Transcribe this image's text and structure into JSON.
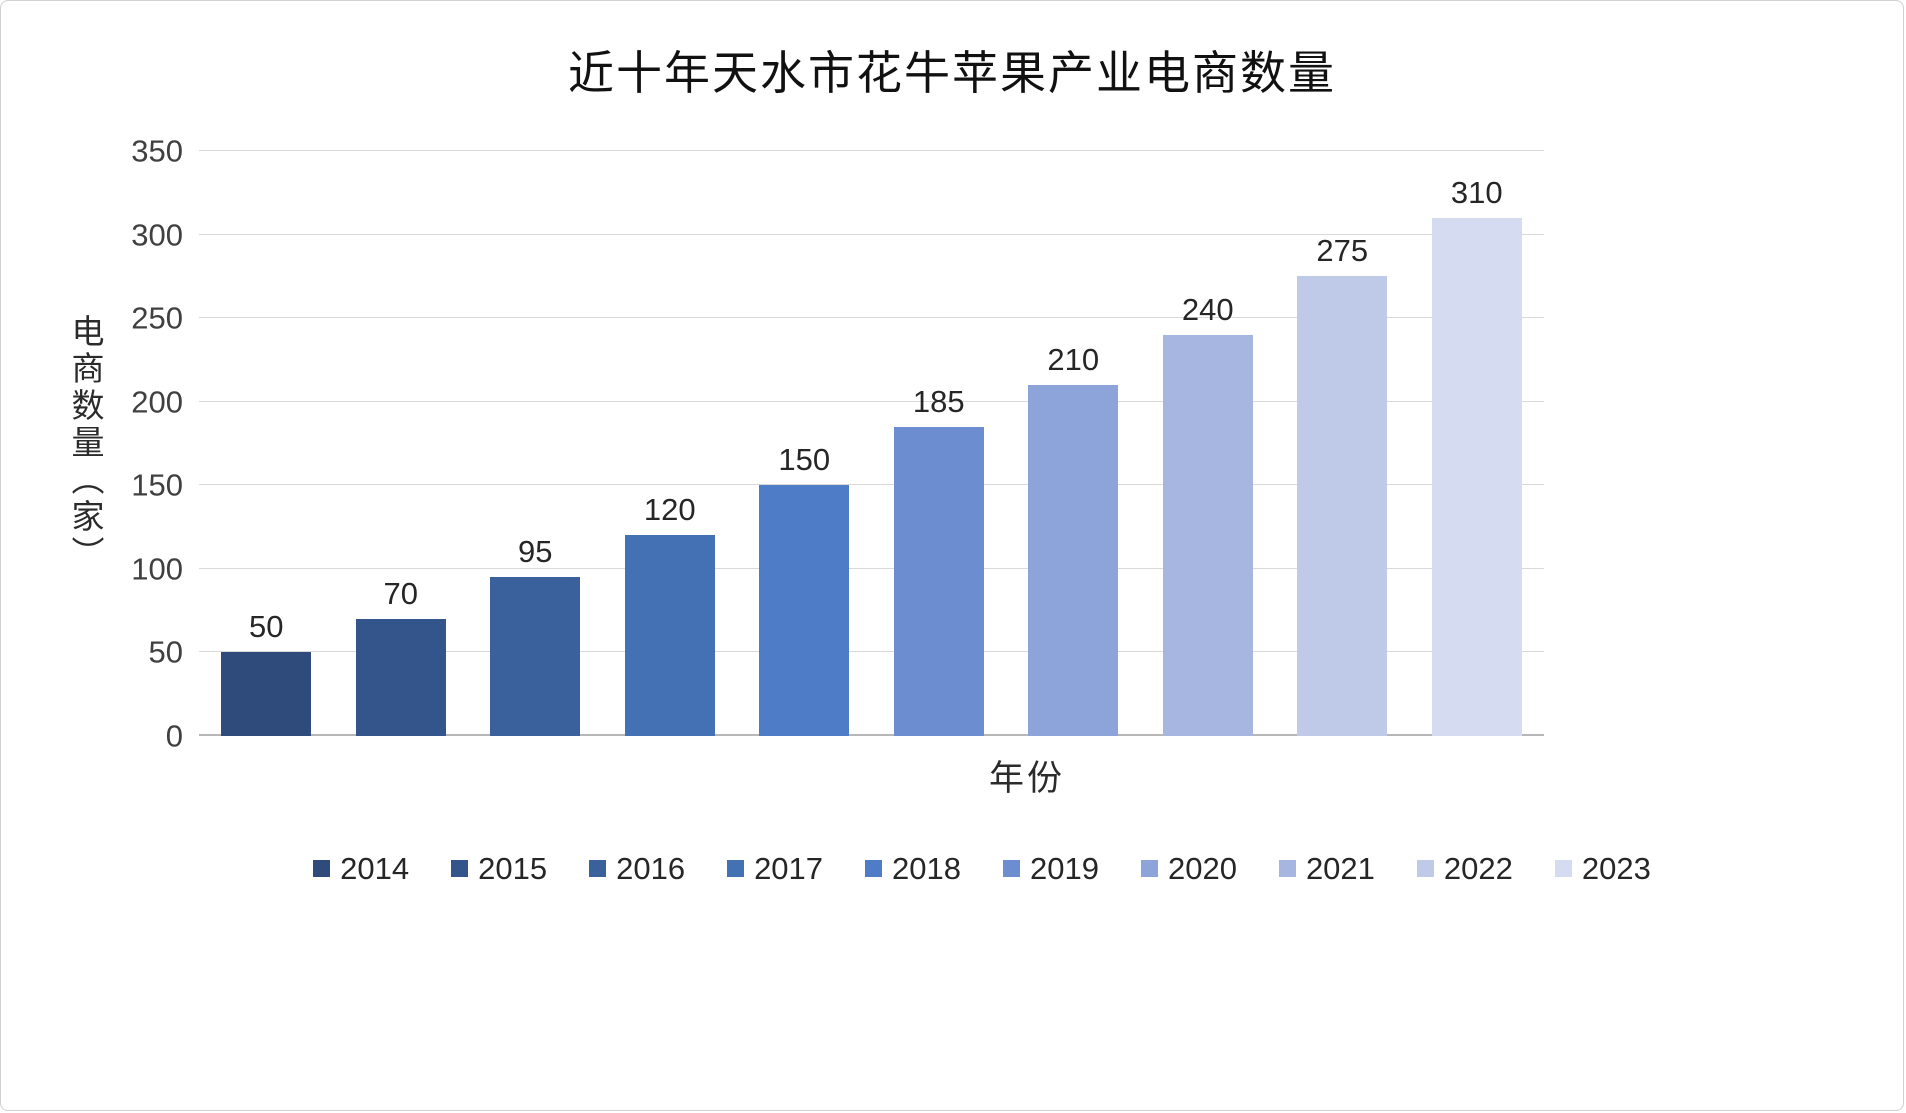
{
  "page": {
    "title": "近十年天水市花牛苹果产业电商数量"
  },
  "chart_data": {
    "type": "bar",
    "title": "近十年天水市花牛苹果产业电商数量",
    "xlabel": "年份",
    "ylabel": "电商数量（家）",
    "categories": [
      "2014",
      "2015",
      "2016",
      "2017",
      "2018",
      "2019",
      "2020",
      "2021",
      "2022",
      "2023"
    ],
    "values": [
      50,
      70,
      95,
      120,
      150,
      185,
      210,
      240,
      275,
      310
    ],
    "ylim": [
      0,
      350
    ],
    "yticks": [
      0,
      50,
      100,
      150,
      200,
      250,
      300,
      350
    ],
    "grid": true,
    "legend_position": "bottom",
    "bar_colors": [
      "#2f4b7c",
      "#33558b",
      "#3a619c",
      "#4470b4",
      "#4e7cc6",
      "#6c8ed0",
      "#8da4da",
      "#a6b6e0",
      "#bfcae9",
      "#d5dcf1"
    ],
    "gridline_color": "#d9d9d9",
    "axis_line_color": "#b7b7b7"
  }
}
